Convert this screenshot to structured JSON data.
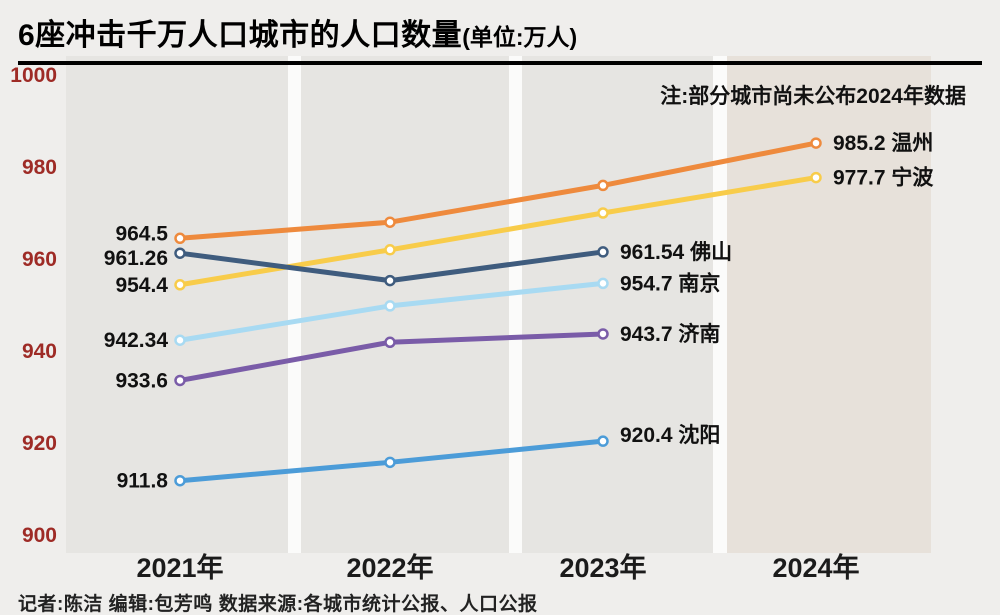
{
  "page": {
    "title": "6座冲击千万人口城市的人口数量",
    "title_unit": "(单位:万人)",
    "note": "注:部分城市尚未公布2024年数据",
    "footer": "记者:陈洁  编辑:包芳鸣  数据来源:各城市统计公报、人口公报"
  },
  "colors": {
    "background": "#efeeec",
    "band": "#e6e5e2",
    "band_last": "#e7e1da",
    "band_gap": "#fbfbfa",
    "axis_tick": "#9e2b26",
    "x_label": "#1b1b1b",
    "value_label": "#111111",
    "title_rule": "#000000"
  },
  "chart_data": {
    "type": "line",
    "title": "6座冲击千万人口城市的人口数量(单位:万人)",
    "note": "注:部分城市尚未公布2024年数据",
    "x_categories": [
      "2021年",
      "2022年",
      "2023年",
      "2024年"
    ],
    "ylim": [
      900,
      1000
    ],
    "yticks": [
      1000,
      980,
      960,
      940,
      920,
      900
    ],
    "grid": "vertical-bands",
    "legend_position": "end-of-line-labels",
    "series": [
      {
        "id": "wenzhou",
        "name": "温州",
        "color": "#ee8a3d",
        "values": [
          964.5,
          968.0,
          976.0,
          985.2
        ],
        "start_label": "964.5",
        "end_label": "985.2 温州"
      },
      {
        "id": "ningbo",
        "name": "宁波",
        "color": "#f8cc4a",
        "values": [
          954.4,
          962.0,
          970.0,
          977.7
        ],
        "start_label": "954.4",
        "end_label": "977.7 宁波"
      },
      {
        "id": "foshan",
        "name": "佛山",
        "color": "#3f5c7e",
        "values": [
          961.26,
          955.3,
          961.54,
          null
        ],
        "start_label": "961.26",
        "end_label": "961.54 佛山"
      },
      {
        "id": "nanjing",
        "name": "南京",
        "color": "#a8daf2",
        "values": [
          942.34,
          949.8,
          954.7,
          null
        ],
        "start_label": "942.34",
        "end_label": "954.7 南京"
      },
      {
        "id": "jinan",
        "name": "济南",
        "color": "#7a5ca8",
        "values": [
          933.6,
          941.9,
          943.7,
          null
        ],
        "start_label": "933.6",
        "end_label": "943.7 济南"
      },
      {
        "id": "shenyang",
        "name": "沈阳",
        "color": "#4c9cd8",
        "values": [
          911.8,
          915.8,
          920.4,
          null
        ],
        "start_label": "911.8",
        "end_label": "920.4 沈阳"
      }
    ]
  }
}
